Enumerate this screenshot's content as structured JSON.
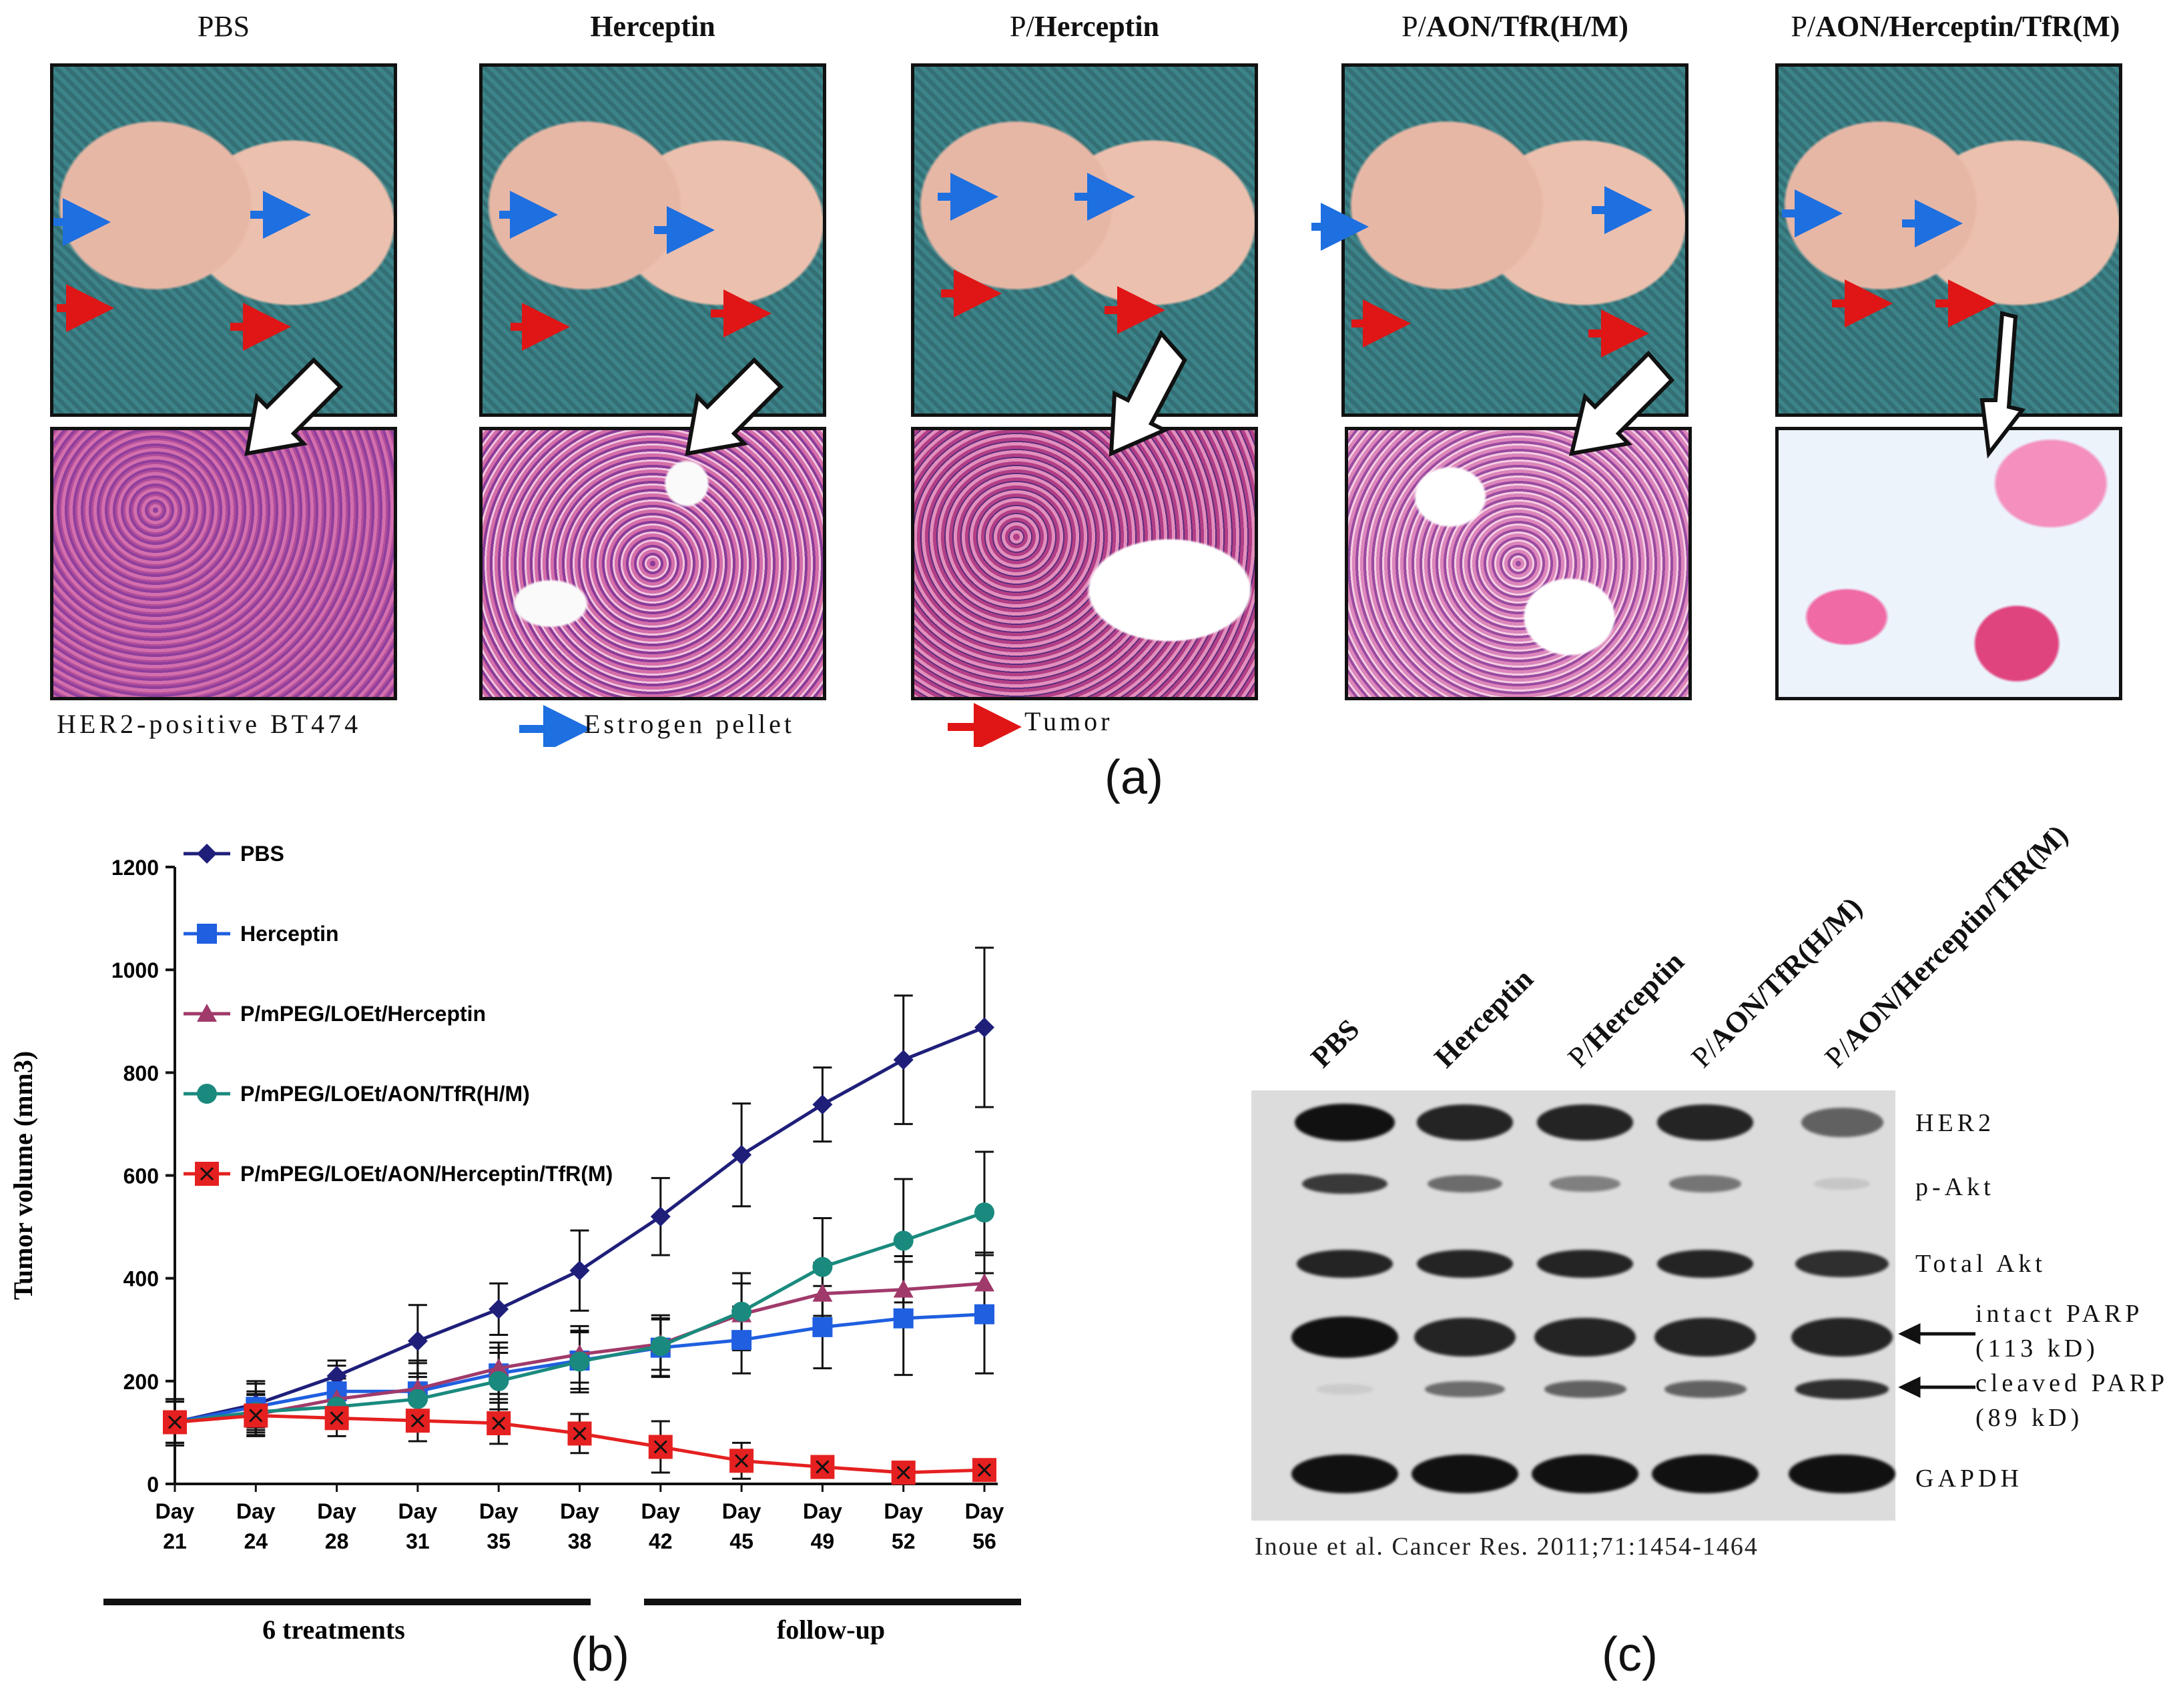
{
  "panel_a": {
    "label": "(a)",
    "groups": [
      {
        "prefix": "",
        "title": "PBS",
        "bold": false
      },
      {
        "prefix": "",
        "title": "Herceptin",
        "bold": true
      },
      {
        "prefix": "P/",
        "title": "Herceptin",
        "bold": true
      },
      {
        "prefix": "P/",
        "title": "AON/TfR(H/M)",
        "bold": true
      },
      {
        "prefix": "P/",
        "title": "AON/Herceptin/TfR(M)",
        "bold": true
      }
    ],
    "notes": {
      "cell_line": "HER2-positive BT474",
      "blue_arrow": "Estrogen pellet",
      "red_arrow": "Tumor"
    },
    "colors": {
      "blue_arrow": "#1e6fe0",
      "red_arrow": "#e01515"
    }
  },
  "panel_b": {
    "label": "(b)",
    "bracket_left": "6 treatments",
    "bracket_right": "follow-up"
  },
  "panel_c": {
    "label": "(c)",
    "lanes": [
      {
        "prefix": "",
        "text": "PBS"
      },
      {
        "prefix": "",
        "text": "Herceptin"
      },
      {
        "prefix": "P/",
        "text": "Herceptin"
      },
      {
        "prefix": "P/",
        "text": "AON/TfR(H/M)"
      },
      {
        "prefix": "P/",
        "text": "AON/Herceptin/TfR(M)"
      }
    ],
    "rows": {
      "her2": "HER2",
      "pakt": "p-Akt",
      "totalakt": "Total Akt",
      "intact_parp": "intact PARP",
      "intact_parp_kd": "(113 kD)",
      "cleaved_parp": "cleaved PARP",
      "cleaved_parp_kd": "(89 kD)",
      "gapdh": "GAPDH"
    },
    "band_intensity": {
      "her2": [
        1.0,
        0.9,
        0.9,
        0.9,
        0.6
      ],
      "pakt": [
        0.8,
        0.55,
        0.45,
        0.5,
        0.1
      ],
      "totalakt": [
        0.9,
        0.9,
        0.9,
        0.9,
        0.85
      ],
      "intact_parp": [
        1.0,
        0.9,
        0.9,
        0.9,
        0.9
      ],
      "cleaved_parp": [
        0.05,
        0.55,
        0.6,
        0.6,
        0.85
      ],
      "gapdh": [
        1.0,
        1.0,
        1.0,
        1.0,
        1.0
      ]
    },
    "citation": "Inoue et al. Cancer Res. 2011;71:1454-1464"
  },
  "chart_data": {
    "type": "line",
    "title": "",
    "xlabel": "",
    "ylabel": "Tumor volume (mm3)",
    "ylim": [
      0,
      1200
    ],
    "yticks": [
      0,
      200,
      400,
      600,
      800,
      1000,
      1200
    ],
    "categories": [
      "Day 21",
      "Day 24",
      "Day 28",
      "Day 31",
      "Day 35",
      "Day 38",
      "Day 42",
      "Day 45",
      "Day 49",
      "Day 52",
      "Day 56"
    ],
    "category_lines": [
      [
        "Day",
        "21"
      ],
      [
        "Day",
        "24"
      ],
      [
        "Day",
        "28"
      ],
      [
        "Day",
        "31"
      ],
      [
        "Day",
        "35"
      ],
      [
        "Day",
        "38"
      ],
      [
        "Day",
        "42"
      ],
      [
        "Day",
        "45"
      ],
      [
        "Day",
        "49"
      ],
      [
        "Day",
        "52"
      ],
      [
        "Day",
        "56"
      ]
    ],
    "legend_position": "top-left",
    "series": [
      {
        "name": "PBS",
        "marker": "diamond",
        "color": "#1f1f7a",
        "values": [
          120,
          155,
          210,
          278,
          340,
          415,
          520,
          640,
          738,
          825,
          888
        ],
        "errors": [
          45,
          45,
          30,
          70,
          50,
          78,
          75,
          100,
          72,
          125,
          155
        ]
      },
      {
        "name": "Herceptin",
        "marker": "square",
        "color": "#1f5fe0",
        "values": [
          120,
          150,
          180,
          180,
          215,
          240,
          265,
          280,
          305,
          322,
          330
        ],
        "errors": [
          45,
          45,
          50,
          60,
          50,
          55,
          55,
          65,
          80,
          110,
          115
        ]
      },
      {
        "name": "P/mPEG/LOEt/Herceptin",
        "marker": "triangle",
        "color": "#a03a6a",
        "values": [
          120,
          135,
          165,
          185,
          225,
          252,
          272,
          330,
          370,
          378,
          390
        ],
        "errors": [
          40,
          40,
          40,
          50,
          50,
          55,
          50,
          60,
          60,
          65,
          60
        ]
      },
      {
        "name": "P/mPEG/LOEt/AON/TfR(H/M)",
        "marker": "circle",
        "color": "#1a8a7e",
        "values": [
          120,
          140,
          150,
          165,
          200,
          238,
          268,
          335,
          422,
          473,
          528
        ],
        "errors": [
          40,
          40,
          40,
          50,
          55,
          60,
          60,
          75,
          95,
          120,
          118
        ]
      },
      {
        "name": "P/mPEG/LOEt/AON/Herceptin/TfR(M)",
        "marker": "square-x",
        "color": "#e52020",
        "values": [
          120,
          133,
          128,
          123,
          118,
          98,
          72,
          45,
          33,
          22,
          27
        ],
        "errors": [
          40,
          40,
          35,
          40,
          40,
          38,
          50,
          35,
          15,
          10,
          12
        ]
      }
    ]
  }
}
